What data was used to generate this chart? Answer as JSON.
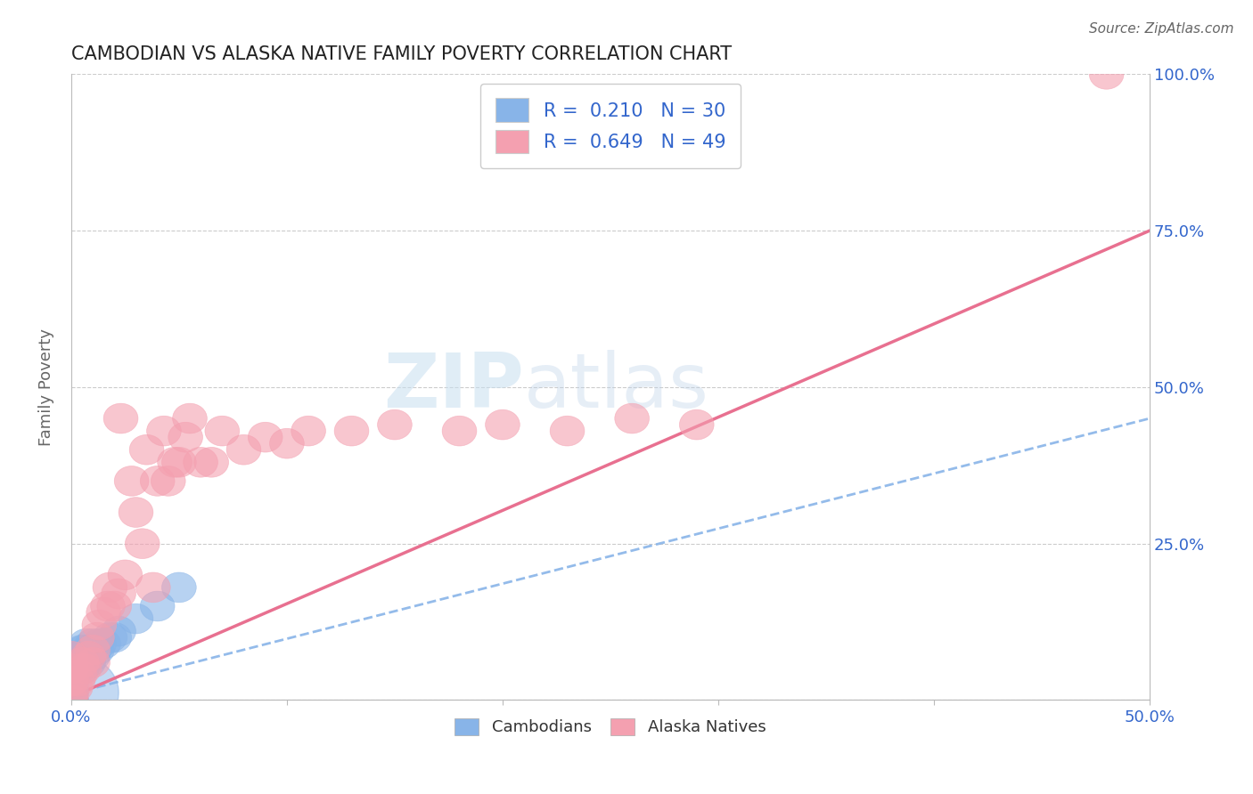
{
  "title": "CAMBODIAN VS ALASKA NATIVE FAMILY POVERTY CORRELATION CHART",
  "source_text": "Source: ZipAtlas.com",
  "ylabel": "Family Poverty",
  "xlim": [
    0.0,
    0.5
  ],
  "ylim": [
    0.0,
    1.0
  ],
  "xticks": [
    0.0,
    0.1,
    0.2,
    0.3,
    0.4,
    0.5
  ],
  "xtick_labels": [
    "0.0%",
    "",
    "",
    "",
    "",
    "50.0%"
  ],
  "ytick_labels_right": [
    "",
    "25.0%",
    "50.0%",
    "75.0%",
    "100.0%"
  ],
  "yticks_right": [
    0.0,
    0.25,
    0.5,
    0.75,
    1.0
  ],
  "cambodian_color": "#88b4e8",
  "alaska_color": "#f4a0b0",
  "cambodian_line_color": "#88b4e8",
  "alaska_line_color": "#e87090",
  "cambodian_R": 0.21,
  "cambodian_N": 30,
  "alaska_R": 0.649,
  "alaska_N": 49,
  "watermark_zip": "ZIP",
  "watermark_atlas": "atlas",
  "background_color": "#ffffff",
  "grid_color": "#cccccc",
  "title_color": "#333333",
  "legend_label_cambodians": "Cambodians",
  "legend_label_alaska": "Alaska Natives",
  "cam_x": [
    0.0,
    0.0,
    0.0,
    0.0,
    0.0,
    0.0,
    0.0,
    0.0,
    0.003,
    0.003,
    0.005,
    0.005,
    0.005,
    0.006,
    0.006,
    0.007,
    0.007,
    0.008,
    0.008,
    0.01,
    0.01,
    0.012,
    0.013,
    0.015,
    0.018,
    0.02,
    0.022,
    0.03,
    0.04,
    0.05
  ],
  "cam_y": [
    0.0,
    0.0,
    0.01,
    0.02,
    0.03,
    0.04,
    0.05,
    0.06,
    0.05,
    0.07,
    0.05,
    0.07,
    0.08,
    0.06,
    0.08,
    0.07,
    0.09,
    0.06,
    0.08,
    0.07,
    0.09,
    0.08,
    0.09,
    0.09,
    0.1,
    0.1,
    0.11,
    0.13,
    0.15,
    0.18
  ],
  "alaska_x": [
    0.0,
    0.0,
    0.0,
    0.0,
    0.0,
    0.002,
    0.003,
    0.004,
    0.005,
    0.006,
    0.008,
    0.01,
    0.01,
    0.012,
    0.013,
    0.015,
    0.017,
    0.018,
    0.02,
    0.022,
    0.023,
    0.025,
    0.028,
    0.03,
    0.033,
    0.035,
    0.038,
    0.04,
    0.043,
    0.045,
    0.048,
    0.05,
    0.053,
    0.055,
    0.06,
    0.065,
    0.07,
    0.08,
    0.09,
    0.1,
    0.11,
    0.13,
    0.15,
    0.18,
    0.2,
    0.23,
    0.26,
    0.29,
    0.48
  ],
  "alaska_y": [
    0.0,
    0.01,
    0.03,
    0.05,
    0.07,
    0.02,
    0.03,
    0.04,
    0.06,
    0.05,
    0.07,
    0.06,
    0.08,
    0.1,
    0.12,
    0.14,
    0.15,
    0.18,
    0.15,
    0.17,
    0.45,
    0.2,
    0.35,
    0.3,
    0.25,
    0.4,
    0.18,
    0.35,
    0.43,
    0.35,
    0.38,
    0.38,
    0.42,
    0.45,
    0.38,
    0.38,
    0.43,
    0.4,
    0.42,
    0.41,
    0.43,
    0.43,
    0.44,
    0.43,
    0.44,
    0.43,
    0.45,
    0.44,
    1.0
  ]
}
